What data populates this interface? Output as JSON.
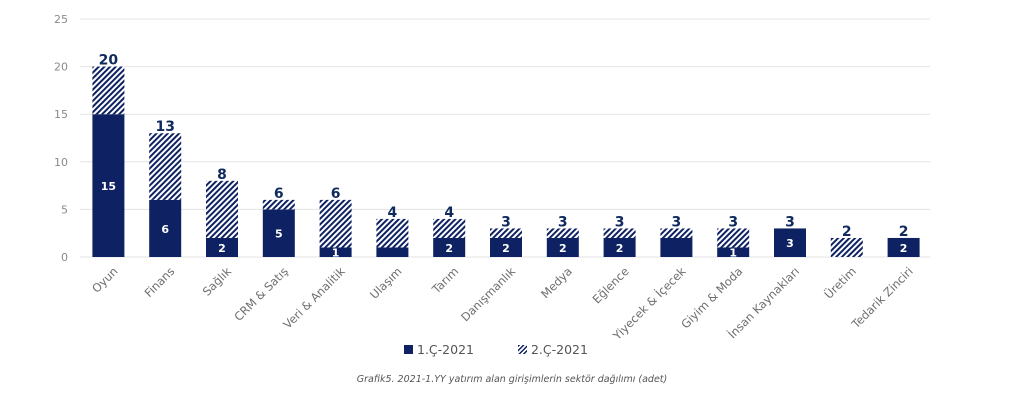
{
  "chart_data": {
    "type": "bar",
    "stacked": true,
    "categories": [
      "Oyun",
      "Finans",
      "Sağlık",
      "CRM & Satış",
      "Veri & Analitik",
      "Ulaşım",
      "Tarım",
      "Danışmanlık",
      "Medya",
      "Eğlence",
      "Yiyecek & İçecek",
      "Giyim & Moda",
      "İnsan Kaynakları",
      "Üretim",
      "Tedarik Zinciri"
    ],
    "series": [
      {
        "name": "1.Ç-2021",
        "values": [
          15,
          6,
          2,
          5,
          1,
          1,
          2,
          2,
          2,
          2,
          2,
          1,
          3,
          0,
          2
        ],
        "color": "#0e2263",
        "pattern": "solid"
      },
      {
        "name": "2.Ç-2021",
        "values": [
          5,
          7,
          6,
          1,
          5,
          3,
          2,
          1,
          1,
          1,
          1,
          2,
          0,
          2,
          0
        ],
        "color": "#0e2263",
        "pattern": "hatched"
      }
    ],
    "totals": [
      20,
      13,
      8,
      6,
      6,
      4,
      4,
      3,
      3,
      3,
      3,
      3,
      3,
      2,
      2
    ],
    "inner_labels": [
      "15",
      "6",
      "2",
      "5",
      "1",
      "",
      "2",
      "2",
      "2",
      "2",
      "",
      "1",
      "3",
      "",
      "2"
    ],
    "yticks": [
      0,
      5,
      10,
      15,
      20,
      25
    ],
    "ylim": [
      0,
      25
    ],
    "grid": true,
    "legend_position": "bottom",
    "title": "",
    "xlabel": "",
    "ylabel": ""
  },
  "caption": "Grafik5. 2021-1.YY yatırım alan girişimlerin sektör dağılımı (adet)"
}
